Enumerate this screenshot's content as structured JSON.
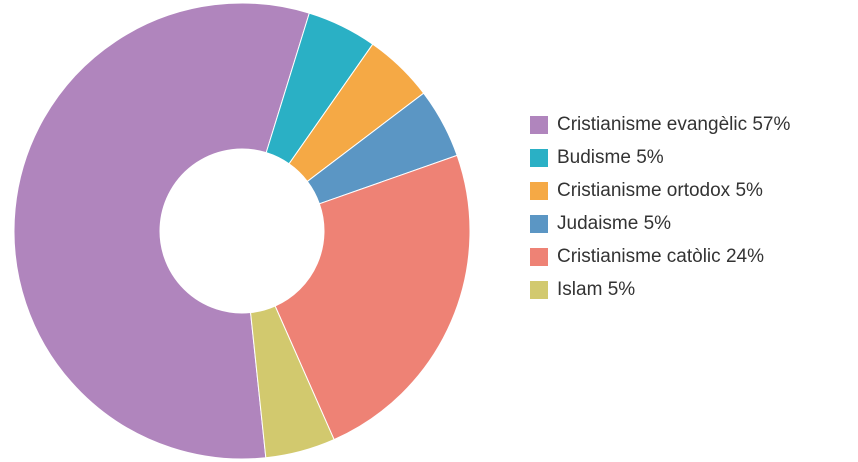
{
  "chart_data": {
    "type": "donut",
    "categories": [
      "Cristianisme evangèlic",
      "Budisme",
      "Cristianisme ortodox",
      "Judaisme",
      "Cristianisme catòlic",
      "Islam"
    ],
    "values": [
      57,
      5,
      5,
      5,
      24,
      5
    ],
    "value_labels": [
      "57%",
      "5%",
      "5%",
      "5%",
      "24%",
      "5%"
    ],
    "colors": [
      "#b085bd",
      "#2ab0c5",
      "#f5a945",
      "#5b96c4",
      "#ee8275",
      "#d2c96e"
    ],
    "legend": "right"
  }
}
